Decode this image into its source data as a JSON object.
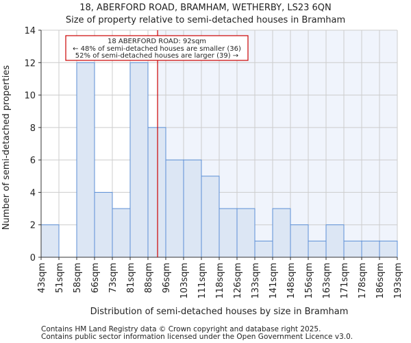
{
  "chart_data": {
    "type": "bar",
    "title": "18, ABERFORD ROAD, BRAMHAM, WETHERBY, LS23 6QN",
    "subtitle": "Size of property relative to semi-detached houses in Bramham",
    "xlabel": "Distribution of semi-detached houses by size in Bramham",
    "ylabel": "Number of semi-detached properties",
    "tick_labels": [
      "43sqm",
      "51sqm",
      "58sqm",
      "66sqm",
      "73sqm",
      "81sqm",
      "88sqm",
      "96sqm",
      "103sqm",
      "111sqm",
      "118sqm",
      "126sqm",
      "133sqm",
      "141sqm",
      "148sqm",
      "156sqm",
      "163sqm",
      "171sqm",
      "178sqm",
      "186sqm",
      "193sqm"
    ],
    "values": [
      2,
      0,
      12,
      4,
      3,
      12,
      8,
      6,
      6,
      5,
      3,
      3,
      1,
      3,
      2,
      1,
      2,
      1,
      1,
      1
    ],
    "ylim": [
      0,
      14
    ],
    "yticks": [
      0,
      2,
      4,
      6,
      8,
      10,
      12,
      14
    ],
    "grid": true,
    "marker_value_bins": 6.54,
    "annotation": {
      "line1": "18 ABERFORD ROAD: 92sqm",
      "line2": "← 48% of semi-detached houses are smaller (36)",
      "line3": "52% of semi-detached houses are larger (39) →"
    },
    "colors": {
      "bar": "#dce6f4",
      "bar_edge": "#5b8fd6",
      "marker": "#cc0000",
      "highlight_bg": "#f0f4fc"
    }
  },
  "footer": {
    "line1": "Contains HM Land Registry data © Crown copyright and database right 2025.",
    "line2": "Contains public sector information licensed under the Open Government Licence v3.0."
  }
}
